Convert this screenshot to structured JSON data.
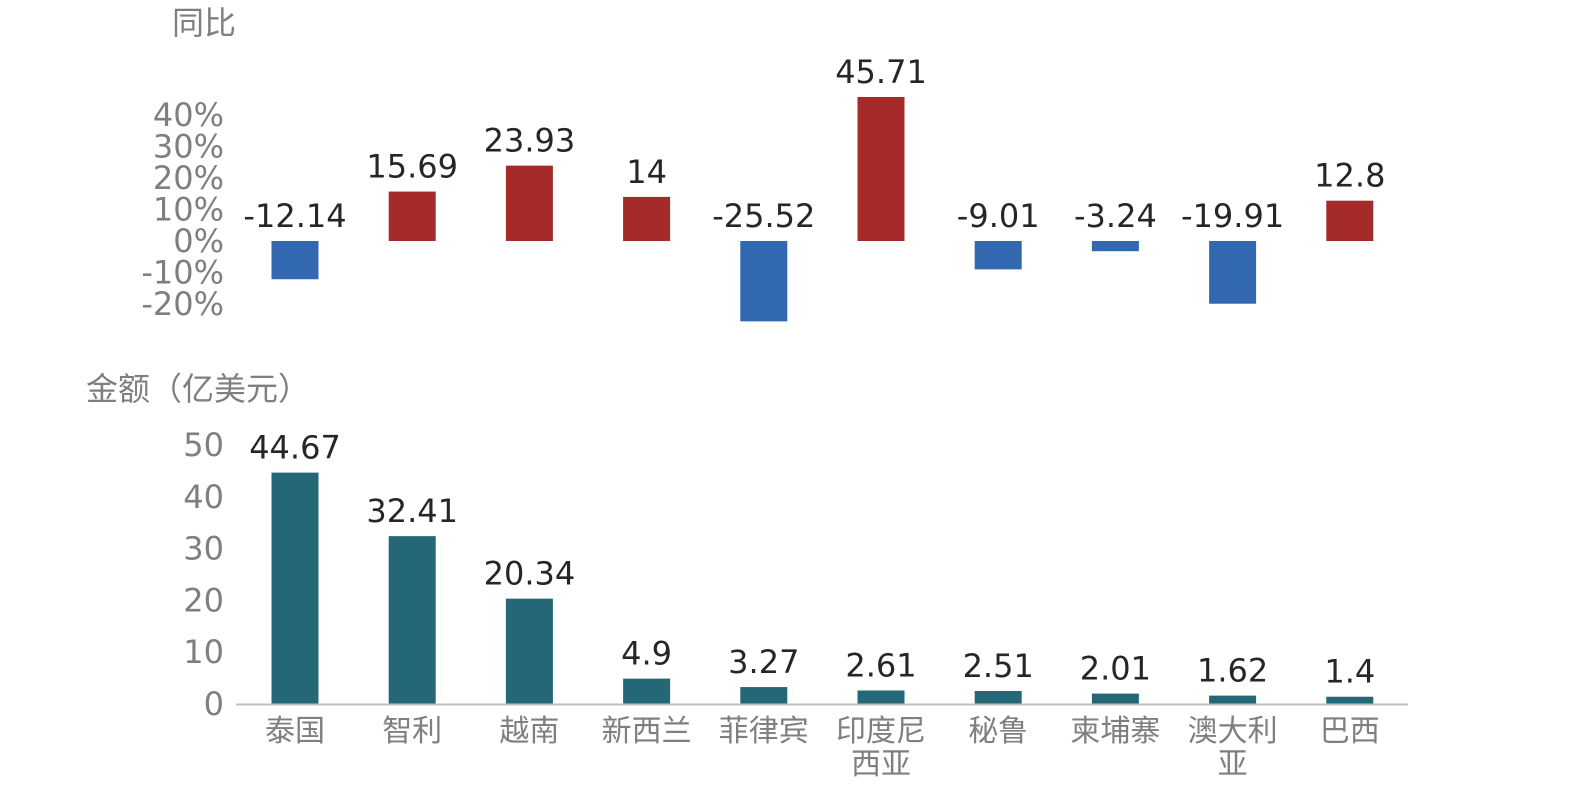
{
  "chart_data": [
    {
      "type": "bar",
      "ylabel": "同比",
      "categories": [
        "泰国",
        "智利",
        "越南",
        "新西兰",
        "菲律宾",
        "印度尼西亚",
        "秘鲁",
        "柬埔寨",
        "澳大利亚",
        "巴西"
      ],
      "values": [
        -12.14,
        15.69,
        23.93,
        14,
        -25.52,
        45.71,
        -9.01,
        -3.24,
        -19.91,
        12.8
      ],
      "value_labels": [
        "-12.14",
        "15.69",
        "23.93",
        "14",
        "-25.52",
        "45.71",
        "-9.01",
        "-3.24",
        "-19.91",
        "12.8"
      ],
      "yticks": [
        "40%",
        "30%",
        "20%",
        "10%",
        "0%",
        "-10%",
        "-20%"
      ],
      "ylim": [
        -20,
        40
      ],
      "colors": {
        "positive": "#a52a2a",
        "negative": "#3268b0"
      },
      "grid": false,
      "legend": "none"
    },
    {
      "type": "bar",
      "ylabel": "金额（亿美元）",
      "categories": [
        "泰国",
        "智利",
        "越南",
        "新西兰",
        "菲律宾",
        "印度尼西亚",
        "秘鲁",
        "柬埔寨",
        "澳大利亚",
        "巴西"
      ],
      "category_lines": [
        [
          "泰国"
        ],
        [
          "智利"
        ],
        [
          "越南"
        ],
        [
          "新西兰"
        ],
        [
          "菲律宾"
        ],
        [
          "印度尼",
          "西亚"
        ],
        [
          "秘鲁"
        ],
        [
          "柬埔寨"
        ],
        [
          "澳大利",
          "亚"
        ],
        [
          "巴西"
        ]
      ],
      "values": [
        44.67,
        32.41,
        20.34,
        4.9,
        3.27,
        2.61,
        2.51,
        2.01,
        1.62,
        1.4
      ],
      "value_labels": [
        "44.67",
        "32.41",
        "20.34",
        "4.9",
        "3.27",
        "2.61",
        "2.51",
        "2.01",
        "1.62",
        "1.4"
      ],
      "yticks": [
        "50",
        "40",
        "30",
        "20",
        "10",
        "0"
      ],
      "ylim": [
        0,
        50
      ],
      "colors": {
        "bar": "#246878",
        "axis": "#bfbfbf"
      },
      "grid": false,
      "legend": "none"
    }
  ]
}
